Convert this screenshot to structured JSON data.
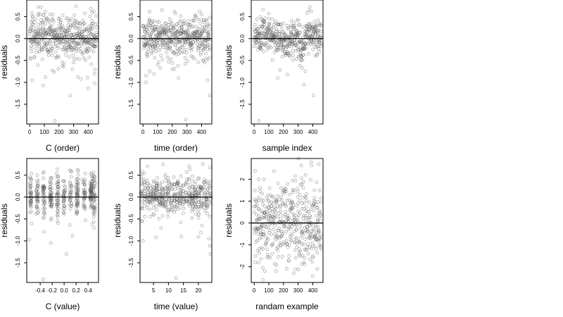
{
  "chart_data": [
    {
      "type": "scatter",
      "xlabel": "C (order)",
      "ylabel": "residuals",
      "xlim": [
        -20,
        470
      ],
      "ylim": [
        -1.95,
        0.88
      ],
      "xticks": [
        0,
        100,
        200,
        300,
        400
      ],
      "xtick_labels": [
        "0",
        "100",
        "200",
        "300",
        "400"
      ],
      "yticks": [
        -1.5,
        -1.0,
        -0.5,
        0.0,
        0.5
      ],
      "ytick_labels": [
        "-1.5",
        "-1.0",
        "-0.5",
        "0.0",
        "0.5"
      ],
      "hline": 0,
      "n_points": 460,
      "series": [
        {
          "points": [
            [
              92,
              -1.07
            ],
            [
              108,
              -0.88
            ],
            [
              155,
              -0.73
            ],
            [
              277,
              -1.3
            ],
            [
              330,
              -0.88
            ],
            [
              170,
              -1.88
            ],
            [
              18,
              -0.95
            ],
            [
              58,
              0.72
            ],
            [
              438,
              0.62
            ],
            [
              446,
              -0.7
            ],
            [
              223,
              -0.62
            ],
            [
              270,
              -0.42
            ],
            [
              12,
              0.38
            ],
            [
              140,
              0.55
            ],
            [
              200,
              0.45
            ],
            [
              360,
              -0.35
            ],
            [
              420,
              0.3
            ],
            [
              80,
              -0.2
            ],
            [
              250,
              0.1
            ],
            [
              300,
              -0.55
            ]
          ]
        }
      ]
    },
    {
      "type": "scatter",
      "xlabel": "time (order)",
      "ylabel": "residuals",
      "xlim": [
        -20,
        470
      ],
      "ylim": [
        -1.95,
        0.88
      ],
      "xticks": [
        0,
        100,
        200,
        300,
        400
      ],
      "xtick_labels": [
        "0",
        "100",
        "200",
        "300",
        "400"
      ],
      "yticks": [
        -1.5,
        -1.0,
        -0.5,
        0.0,
        0.5
      ],
      "ytick_labels": [
        "-1.5",
        "-1.0",
        "-0.5",
        "0.0",
        "0.5"
      ],
      "hline": 0,
      "n_points": 460,
      "series": [
        {
          "points": [
            [
              20,
              -1.0
            ],
            [
              292,
              -1.85
            ],
            [
              455,
              -1.3
            ],
            [
              440,
              -0.95
            ],
            [
              243,
              -0.9
            ],
            [
              200,
              -0.7
            ],
            [
              130,
              0.65
            ],
            [
              400,
              0.55
            ],
            [
              50,
              0.3
            ],
            [
              330,
              -0.4
            ],
            [
              180,
              0.2
            ],
            [
              60,
              -0.3
            ],
            [
              260,
              0.4
            ],
            [
              350,
              0.05
            ],
            [
              100,
              -0.6
            ]
          ]
        }
      ]
    },
    {
      "type": "scatter",
      "xlabel": "sample index",
      "ylabel": "residuals",
      "xlim": [
        -20,
        470
      ],
      "ylim": [
        -1.95,
        0.88
      ],
      "xticks": [
        0,
        100,
        200,
        300,
        400
      ],
      "xtick_labels": [
        "0",
        "100",
        "200",
        "300",
        "400"
      ],
      "yticks": [
        -1.5,
        -1.0,
        -0.5,
        0.0,
        0.5
      ],
      "ytick_labels": [
        "-1.5",
        "-1.0",
        "-0.5",
        "0.0",
        "0.5"
      ],
      "hline": 0,
      "n_points": 460,
      "series": [
        {
          "points": [
            [
              32,
              -1.88
            ],
            [
              160,
              -0.9
            ],
            [
              340,
              -1.05
            ],
            [
              405,
              -1.3
            ],
            [
              350,
              -0.75
            ],
            [
              300,
              -0.25
            ],
            [
              380,
              0.72
            ],
            [
              390,
              0.62
            ],
            [
              100,
              0.2
            ],
            [
              200,
              0.35
            ],
            [
              250,
              0.3
            ],
            [
              40,
              -0.1
            ],
            [
              420,
              0.1
            ],
            [
              320,
              -0.5
            ]
          ]
        }
      ]
    },
    {
      "type": "scatter",
      "xlabel": "C (value)",
      "ylabel": "residuals",
      "xlim": [
        -0.625,
        0.575
      ],
      "ylim": [
        -1.95,
        0.88
      ],
      "xticks": [
        -0.4,
        -0.2,
        0.0,
        0.2,
        0.4
      ],
      "xtick_labels": [
        "-0.4",
        "-0.2",
        "0.0",
        "0.2",
        "0.4"
      ],
      "yticks": [
        -1.5,
        -1.0,
        -0.5,
        0.0,
        0.5
      ],
      "ytick_labels": [
        "-1.5",
        "-1.0",
        "-0.5",
        "0.0",
        "0.5"
      ],
      "hline": 0,
      "n_points": 460,
      "series": [
        {
          "points": [
            [
              -0.35,
              -1.88
            ],
            [
              0.04,
              -1.3
            ],
            [
              -0.22,
              -1.05
            ],
            [
              0.14,
              -0.88
            ],
            [
              -0.58,
              -0.97
            ],
            [
              0.5,
              -0.7
            ],
            [
              -0.1,
              -0.6
            ],
            [
              0.3,
              0.4
            ],
            [
              -0.45,
              0.5
            ],
            [
              0.46,
              0.3
            ],
            [
              -0.55,
              0.42
            ],
            [
              0.2,
              0.2
            ]
          ]
        }
      ]
    },
    {
      "type": "scatter",
      "xlabel": "time (value)",
      "ylabel": "residuals",
      "xlim": [
        0.5,
        24.5
      ],
      "ylim": [
        -1.95,
        0.88
      ],
      "xticks": [
        5,
        10,
        15,
        20
      ],
      "xtick_labels": [
        "5",
        "10",
        "15",
        "20"
      ],
      "yticks": [
        -1.5,
        -1.0,
        -0.5,
        0.0,
        0.5
      ],
      "ytick_labels": [
        "-1.5",
        "-1.0",
        "-0.5",
        "0.0",
        "0.5"
      ],
      "hline": 0,
      "n_points": 460,
      "series": [
        {
          "points": [
            [
              1.5,
              -1.0
            ],
            [
              12.6,
              -1.85
            ],
            [
              24,
              -1.3
            ],
            [
              23.5,
              -0.95
            ],
            [
              14.3,
              -0.9
            ],
            [
              7.5,
              -0.7
            ],
            [
              3,
              0.7
            ],
            [
              21.5,
              0.75
            ],
            [
              12,
              0.3
            ],
            [
              17,
              0.2
            ],
            [
              9,
              0.45
            ],
            [
              5,
              -0.25
            ]
          ]
        }
      ]
    },
    {
      "type": "scatter",
      "xlabel": "randam example",
      "ylabel": "residuals",
      "xlim": [
        -20,
        470
      ],
      "ylim": [
        -2.72,
        2.95
      ],
      "xticks": [
        0,
        100,
        200,
        300,
        400
      ],
      "xtick_labels": [
        "0",
        "100",
        "200",
        "300",
        "400"
      ],
      "yticks": [
        -2,
        -1,
        0,
        1,
        2
      ],
      "ytick_labels": [
        "-2",
        "-1",
        "0",
        "1",
        "2"
      ],
      "hline": 0,
      "n_points": 460,
      "series": [
        {
          "points": [
            [
              60,
              -2.6
            ],
            [
              440,
              2.7
            ],
            [
              390,
              2.8
            ],
            [
              30,
              2.0
            ],
            [
              270,
              -2.3
            ],
            [
              430,
              -2.1
            ],
            [
              150,
              -2.2
            ],
            [
              200,
              1.5
            ],
            [
              100,
              1.0
            ],
            [
              330,
              -1.5
            ],
            [
              250,
              0.5
            ],
            [
              50,
              -0.5
            ],
            [
              400,
              0.8
            ],
            [
              180,
              -1.0
            ]
          ]
        }
      ]
    }
  ]
}
